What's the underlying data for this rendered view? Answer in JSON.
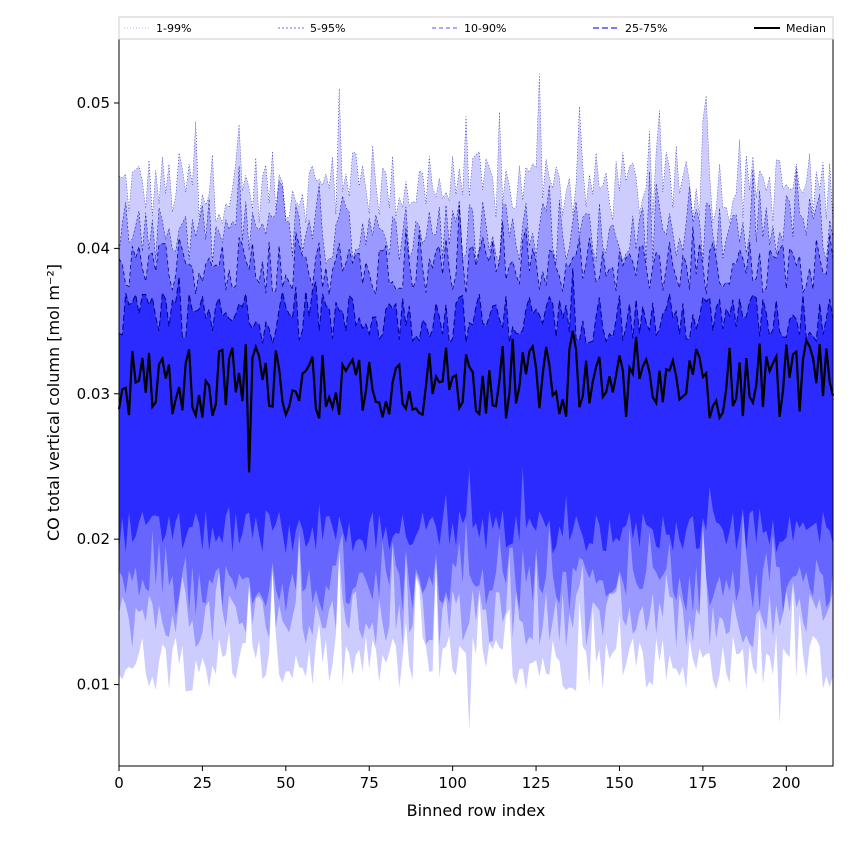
{
  "chart_data": {
    "type": "area",
    "xlabel": "Binned row index",
    "ylabel": "CO total vertical column [mol m⁻²]",
    "xlim": [
      0,
      214
    ],
    "ylim": [
      0.0044,
      0.0544
    ],
    "x_ticks": [
      0,
      25,
      50,
      75,
      100,
      125,
      150,
      175,
      200
    ],
    "y_ticks": [
      0.01,
      0.02,
      0.03,
      0.04,
      0.05
    ],
    "x_tick_labels": [
      "0",
      "25",
      "50",
      "75",
      "100",
      "125",
      "150",
      "175",
      "200"
    ],
    "y_tick_labels": [
      "0.01",
      "0.02",
      "0.03",
      "0.04",
      "0.05"
    ],
    "legend": {
      "placement": "top, spanning full width",
      "entries": [
        "1-99%",
        "5-95%",
        "10-90%",
        "25-75%",
        "Median"
      ]
    },
    "colors": {
      "band_1_99": "#ccccff",
      "band_5_95": "#9999ff",
      "band_10_90": "#6666ff",
      "band_25_75": "#2b2bff",
      "median": "#000000",
      "edge": "#00008b"
    },
    "series": [
      {
        "name": "1-99%",
        "lower_mean": 0.0115,
        "upper_mean": 0.0442
      },
      {
        "name": "5-95%",
        "lower_mean": 0.0145,
        "upper_mean": 0.0412
      },
      {
        "name": "10-90%",
        "lower_mean": 0.0165,
        "upper_mean": 0.0388
      },
      {
        "name": "25-75%",
        "lower_mean": 0.0205,
        "upper_mean": 0.0352
      },
      {
        "name": "Median",
        "mean": 0.0308
      }
    ],
    "notable_points": [
      {
        "x": 39,
        "median": 0.0246
      },
      {
        "x": 66,
        "p99": 0.051
      },
      {
        "x": 126,
        "p99": 0.052
      },
      {
        "x": 105,
        "p1": 0.0068
      },
      {
        "x": 198,
        "p1": 0.0073
      }
    ]
  }
}
